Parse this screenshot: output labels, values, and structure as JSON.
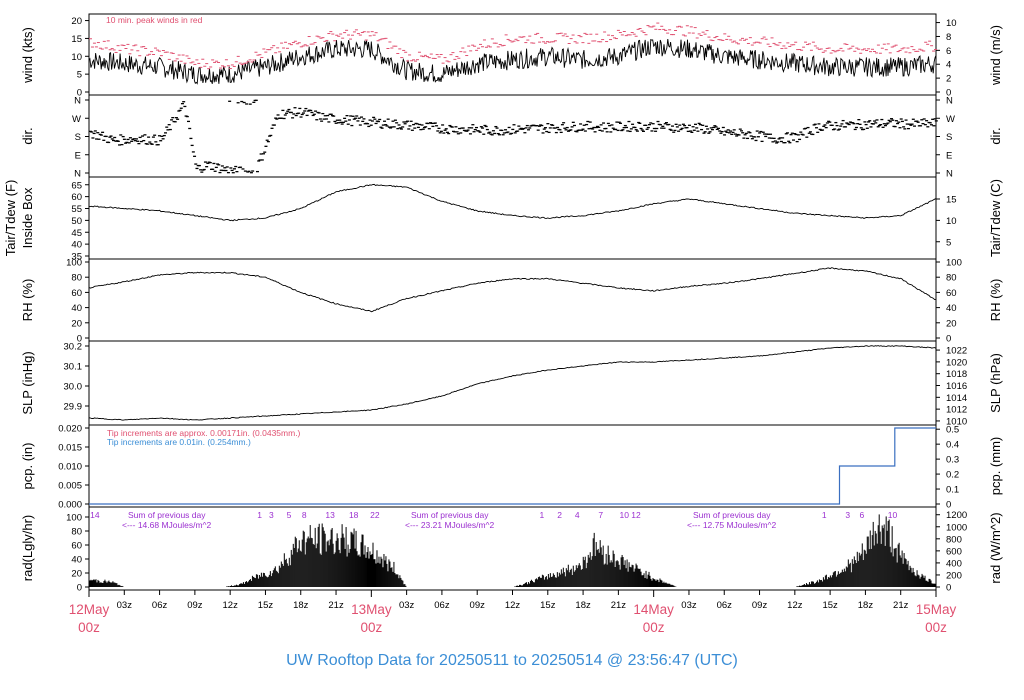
{
  "title": "UW Rooftop Data for 20250511  to  20250514 @ 23:56:47  (UTC)",
  "colors": {
    "title": "#3b8ed6",
    "day_label": "#e05070",
    "note_red": "#e05070",
    "note_blue": "#3b8ed6",
    "sum_text": "#9b2fd0",
    "rain_line": "#3a6fc0",
    "peak_winds": "#e05070"
  },
  "x_axis": {
    "hour_ticks": [
      "03z",
      "06z",
      "09z",
      "12z",
      "15z",
      "18z",
      "21z",
      "03z",
      "06z",
      "09z",
      "12z",
      "15z",
      "18z",
      "21z",
      "03z",
      "06z",
      "09z",
      "12z",
      "15z",
      "18z",
      "21z"
    ],
    "days": [
      {
        "top": "12May",
        "bottom": "00z"
      },
      {
        "top": "13May",
        "bottom": "00z"
      },
      {
        "top": "14May",
        "bottom": "00z"
      },
      {
        "top": "15May",
        "bottom": "00z"
      }
    ]
  },
  "chart_data": [
    {
      "type": "line",
      "id": "wind",
      "ylabel": "wind (kts)",
      "ylabel_right": "wind (m/s)",
      "ylim": [
        0,
        21
      ],
      "yticks": [
        0,
        5,
        10,
        15,
        20
      ],
      "yticks_right": [
        0,
        2,
        4,
        6,
        8,
        10
      ],
      "note": "10 min. peak winds in red",
      "series": [
        {
          "name": "wind",
          "x": [
            0,
            3,
            6,
            9,
            12,
            15,
            18,
            21,
            24,
            27,
            30,
            33,
            36,
            39,
            42,
            45,
            48,
            51,
            54,
            57,
            60,
            63,
            66,
            69,
            72
          ],
          "values": [
            9,
            8,
            7,
            5,
            5,
            7,
            10,
            12,
            12,
            6,
            5,
            8,
            9,
            10,
            9,
            10,
            13,
            12,
            10,
            9,
            8,
            7,
            7,
            7,
            8
          ]
        },
        {
          "name": "10 min. peak winds",
          "x": [
            0,
            3,
            6,
            9,
            12,
            15,
            18,
            21,
            24,
            27,
            30,
            33,
            36,
            39,
            42,
            45,
            48,
            51,
            54,
            57,
            60,
            63,
            66,
            69,
            72
          ],
          "values": [
            14,
            12,
            11,
            8,
            8,
            11,
            14,
            16,
            16,
            10,
            9,
            13,
            15,
            15,
            15,
            16,
            18,
            17,
            15,
            14,
            13,
            12,
            12,
            12,
            13
          ]
        }
      ]
    },
    {
      "type": "scatter",
      "id": "dir",
      "ylabel": "dir.",
      "ylabel_right": "dir.",
      "yticks": [
        "N",
        "E",
        "S",
        "W",
        "N"
      ],
      "series": [
        {
          "x": [
            0,
            2,
            4,
            6,
            8,
            9,
            10,
            12,
            14,
            16,
            18,
            20,
            22,
            24,
            26,
            28,
            30,
            32,
            34,
            36,
            38,
            40,
            42,
            44,
            46,
            48,
            50,
            52,
            54,
            56,
            58,
            60,
            62,
            64,
            66,
            68,
            70,
            72
          ],
          "values": [
            200,
            160,
            170,
            160,
            340,
            20,
            40,
            10,
            0,
            290,
            300,
            270,
            260,
            250,
            240,
            230,
            220,
            215,
            210,
            215,
            220,
            225,
            230,
            225,
            230,
            230,
            225,
            220,
            200,
            190,
            170,
            175,
            230,
            235,
            240,
            245,
            240,
            245
          ]
        }
      ]
    },
    {
      "type": "line",
      "id": "temp",
      "ylabel": "Tair/Tdew (F)",
      "ylabel2": "Inside Box",
      "ylabel_right": "Tair/Tdew (C)",
      "ylim": [
        35,
        67
      ],
      "yticks": [
        35,
        40,
        45,
        50,
        55,
        60,
        65
      ],
      "yticks_right": [
        5,
        10,
        15
      ],
      "series": [
        {
          "name": "Tair",
          "x": [
            0,
            3,
            6,
            9,
            12,
            15,
            18,
            21,
            24,
            27,
            30,
            33,
            36,
            39,
            42,
            45,
            48,
            51,
            54,
            57,
            60,
            63,
            66,
            69,
            72
          ],
          "values": [
            56,
            55,
            54,
            52,
            50,
            51,
            55,
            62,
            65,
            64,
            58,
            54,
            52,
            51,
            52,
            54,
            57,
            59,
            57,
            55,
            53,
            52,
            51,
            52,
            59
          ]
        }
      ]
    },
    {
      "type": "line",
      "id": "rh",
      "ylabel": "RH (%)",
      "ylabel_right": "RH (%)",
      "ylim": [
        0,
        100
      ],
      "yticks": [
        0,
        20,
        40,
        60,
        80,
        100
      ],
      "series": [
        {
          "name": "RH",
          "x": [
            0,
            3,
            6,
            9,
            12,
            15,
            18,
            21,
            24,
            27,
            30,
            33,
            36,
            39,
            42,
            45,
            48,
            51,
            54,
            57,
            60,
            63,
            66,
            69,
            72
          ],
          "values": [
            66,
            74,
            83,
            86,
            86,
            80,
            60,
            45,
            35,
            52,
            62,
            72,
            78,
            78,
            72,
            66,
            62,
            68,
            72,
            78,
            85,
            92,
            88,
            78,
            50
          ]
        }
      ]
    },
    {
      "type": "line",
      "id": "slp",
      "ylabel": "SLP (inHg)",
      "ylabel_right": "SLP (hPa)",
      "ylim": [
        29.82,
        30.21
      ],
      "yticks": [
        29.9,
        30.0,
        30.1,
        30.2
      ],
      "yticks_right": [
        1010,
        1012,
        1014,
        1016,
        1018,
        1020,
        1022
      ],
      "series": [
        {
          "name": "SLP",
          "x": [
            0,
            3,
            6,
            9,
            12,
            15,
            18,
            21,
            24,
            27,
            30,
            33,
            36,
            39,
            42,
            45,
            48,
            51,
            54,
            57,
            60,
            63,
            66,
            69,
            72
          ],
          "values": [
            29.84,
            29.83,
            29.84,
            29.83,
            29.84,
            29.85,
            29.86,
            29.87,
            29.88,
            29.91,
            29.95,
            30.01,
            30.05,
            30.08,
            30.1,
            30.12,
            30.12,
            30.13,
            30.14,
            30.15,
            30.17,
            30.19,
            30.2,
            30.2,
            30.19
          ]
        }
      ]
    },
    {
      "type": "line",
      "id": "pcp",
      "ylabel": "pcp. (in)",
      "ylabel_right": "pcp. (mm)",
      "ylim": [
        0,
        0.02
      ],
      "yticks": [
        0.0,
        0.005,
        0.01,
        0.015,
        0.02
      ],
      "ytick_labels": [
        "0.000",
        "0.005",
        "0.010",
        "0.015",
        "0.020"
      ],
      "yticks_right": [
        0,
        0.1,
        0.2,
        0.3,
        0.4,
        0.5
      ],
      "ytick_labels_right": [
        "0",
        "0.1",
        "0.2",
        "0.3",
        "0.4",
        "0.5"
      ],
      "notes": [
        "Tip increments are approx. 0.00171in. (0.0435mm.)",
        "Tip increments are 0.01in. (0.254mm.)"
      ],
      "series": [
        {
          "x": [
            0,
            63.8,
            63.8,
            68.5,
            68.5,
            72
          ],
          "values": [
            0,
            0,
            0.01,
            0.01,
            0.02,
            0.02
          ]
        }
      ]
    },
    {
      "type": "area",
      "id": "rad",
      "ylabel": "rad(Lgly/hr)",
      "ylabel_right": "rad (W/m^2)",
      "ylim": [
        0,
        110
      ],
      "yticks": [
        0,
        20,
        40,
        60,
        80,
        100
      ],
      "yticks_right": [
        0,
        200,
        400,
        600,
        800,
        1000,
        1200
      ],
      "hour_marks": [
        {
          "x": 0.5,
          "label": "14"
        },
        {
          "x": 14.5,
          "label": "1"
        },
        {
          "x": 15.5,
          "label": "3"
        },
        {
          "x": 17,
          "label": "5"
        },
        {
          "x": 18.3,
          "label": "8"
        },
        {
          "x": 20.5,
          "label": "13"
        },
        {
          "x": 22.5,
          "label": "18"
        },
        {
          "x": 24.3,
          "label": "22"
        },
        {
          "x": 38.5,
          "label": "1"
        },
        {
          "x": 40,
          "label": "2"
        },
        {
          "x": 41.5,
          "label": "4"
        },
        {
          "x": 43.5,
          "label": "7"
        },
        {
          "x": 45.5,
          "label": "10"
        },
        {
          "x": 46.5,
          "label": "12"
        },
        {
          "x": 62.5,
          "label": "1"
        },
        {
          "x": 64.5,
          "label": "3"
        },
        {
          "x": 65.7,
          "label": "6"
        },
        {
          "x": 68.3,
          "label": "10"
        }
      ],
      "sums": [
        {
          "head": "Sum of previous day",
          "val": "<--- 14.68 MJoules/m^2"
        },
        {
          "head": "Sum of previous day",
          "val": "<--- 23.21 MJoules/m^2"
        },
        {
          "head": "Sum of previous day",
          "val": "<--- 12.75 MJoules/m^2"
        }
      ],
      "series": [
        {
          "x": [
            0,
            1,
            2,
            3,
            5,
            10,
            11.5,
            13,
            14,
            16,
            18,
            20,
            22,
            24,
            26,
            27,
            36,
            37,
            38,
            39,
            40,
            41,
            42,
            43,
            44,
            45,
            46,
            47,
            48,
            50,
            60,
            61,
            62,
            63,
            64,
            65,
            66,
            67,
            68,
            69,
            70,
            71,
            72
          ],
          "values": [
            12,
            10,
            8,
            0,
            0,
            0,
            0,
            5,
            15,
            30,
            78,
            80,
            78,
            60,
            30,
            0,
            0,
            5,
            12,
            18,
            24,
            30,
            40,
            70,
            55,
            45,
            35,
            25,
            15,
            0,
            0,
            5,
            10,
            20,
            30,
            40,
            60,
            100,
            90,
            50,
            30,
            15,
            5
          ]
        }
      ]
    }
  ]
}
